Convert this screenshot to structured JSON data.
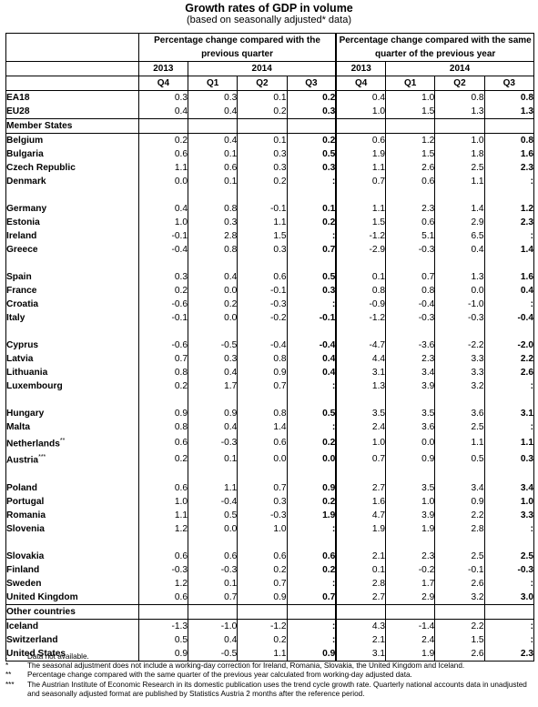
{
  "title": "Growth rates of GDP in volume",
  "subtitle": "(based on seasonally adjusted* data)",
  "header": {
    "group_prev_quarter": "Percentage change compared with the previous quarter",
    "group_prev_year": "Percentage change compared with the same quarter of the previous year",
    "year_2013": "2013",
    "year_2014": "2014",
    "quarters": [
      "Q4",
      "Q1",
      "Q2",
      "Q3",
      "Q4",
      "Q1",
      "Q2",
      "Q3"
    ]
  },
  "sections": [
    {
      "type": "rows",
      "rows": [
        {
          "label": "EA18",
          "v": [
            "0.3",
            "0.3",
            "0.1",
            "0.2",
            "0.4",
            "1.0",
            "0.8",
            "0.8"
          ]
        },
        {
          "label": "EU28",
          "v": [
            "0.4",
            "0.4",
            "0.2",
            "0.3",
            "1.0",
            "1.5",
            "1.3",
            "1.3"
          ]
        }
      ]
    },
    {
      "type": "head",
      "label": "Member States"
    },
    {
      "type": "rows",
      "rows": [
        {
          "label": "Belgium",
          "v": [
            "0.2",
            "0.4",
            "0.1",
            "0.2",
            "0.6",
            "1.2",
            "1.0",
            "0.8"
          ]
        },
        {
          "label": "Bulgaria",
          "v": [
            "0.6",
            "0.1",
            "0.3",
            "0.5",
            "1.9",
            "1.5",
            "1.8",
            "1.6"
          ]
        },
        {
          "label": "Czech Republic",
          "v": [
            "1.1",
            "0.6",
            "0.3",
            "0.3",
            "1.1",
            "2.6",
            "2.5",
            "2.3"
          ]
        },
        {
          "label": "Denmark",
          "v": [
            "0.0",
            "0.1",
            "0.2",
            ":",
            "0.7",
            "0.6",
            "1.1",
            ":"
          ]
        }
      ]
    },
    {
      "type": "rows",
      "rows": [
        {
          "label": "Germany",
          "v": [
            "0.4",
            "0.8",
            "-0.1",
            "0.1",
            "1.1",
            "2.3",
            "1.4",
            "1.2"
          ]
        },
        {
          "label": "Estonia",
          "v": [
            "1.0",
            "0.3",
            "1.1",
            "0.2",
            "1.5",
            "0.6",
            "2.9",
            "2.3"
          ]
        },
        {
          "label": "Ireland",
          "v": [
            "-0.1",
            "2.8",
            "1.5",
            ":",
            "-1.2",
            "5.1",
            "6.5",
            ":"
          ]
        },
        {
          "label": "Greece",
          "v": [
            "-0.4",
            "0.8",
            "0.3",
            "0.7",
            "-2.9",
            "-0.3",
            "0.4",
            "1.4"
          ]
        }
      ]
    },
    {
      "type": "rows",
      "rows": [
        {
          "label": "Spain",
          "v": [
            "0.3",
            "0.4",
            "0.6",
            "0.5",
            "0.1",
            "0.7",
            "1.3",
            "1.6"
          ]
        },
        {
          "label": "France",
          "v": [
            "0.2",
            "0.0",
            "-0.1",
            "0.3",
            "0.8",
            "0.8",
            "0.0",
            "0.4"
          ]
        },
        {
          "label": "Croatia",
          "v": [
            "-0.6",
            "0.2",
            "-0.3",
            ":",
            "-0.9",
            "-0.4",
            "-1.0",
            ":"
          ]
        },
        {
          "label": "Italy",
          "v": [
            "-0.1",
            "0.0",
            "-0.2",
            "-0.1",
            "-1.2",
            "-0.3",
            "-0.3",
            "-0.4"
          ]
        }
      ]
    },
    {
      "type": "rows",
      "rows": [
        {
          "label": "Cyprus",
          "v": [
            "-0.6",
            "-0.5",
            "-0.4",
            "-0.4",
            "-4.7",
            "-3.6",
            "-2.2",
            "-2.0"
          ]
        },
        {
          "label": "Latvia",
          "v": [
            "0.7",
            "0.3",
            "0.8",
            "0.4",
            "4.4",
            "2.3",
            "3.3",
            "2.2"
          ]
        },
        {
          "label": "Lithuania",
          "v": [
            "0.8",
            "0.4",
            "0.9",
            "0.4",
            "3.1",
            "3.4",
            "3.3",
            "2.6"
          ]
        },
        {
          "label": "Luxembourg",
          "v": [
            "0.2",
            "1.7",
            "0.7",
            ":",
            "1.3",
            "3.9",
            "3.2",
            ":"
          ]
        }
      ]
    },
    {
      "type": "rows",
      "rows": [
        {
          "label": "Hungary",
          "v": [
            "0.9",
            "0.9",
            "0.8",
            "0.5",
            "3.5",
            "3.5",
            "3.6",
            "3.1"
          ]
        },
        {
          "label": "Malta",
          "v": [
            "0.8",
            "0.4",
            "1.4",
            ":",
            "2.4",
            "3.6",
            "2.5",
            ":"
          ]
        },
        {
          "label": "Netherlands",
          "mark": "**",
          "v": [
            "0.6",
            "-0.3",
            "0.6",
            "0.2",
            "1.0",
            "0.0",
            "1.1",
            "1.1"
          ]
        },
        {
          "label": "Austria",
          "mark": "***",
          "v": [
            "0.2",
            "0.1",
            "0.0",
            "0.0",
            "0.7",
            "0.9",
            "0.5",
            "0.3"
          ]
        }
      ]
    },
    {
      "type": "rows",
      "rows": [
        {
          "label": "Poland",
          "v": [
            "0.6",
            "1.1",
            "0.7",
            "0.9",
            "2.7",
            "3.5",
            "3.4",
            "3.4"
          ]
        },
        {
          "label": "Portugal",
          "v": [
            "1.0",
            "-0.4",
            "0.3",
            "0.2",
            "1.6",
            "1.0",
            "0.9",
            "1.0"
          ]
        },
        {
          "label": "Romania",
          "v": [
            "1.1",
            "0.5",
            "-0.3",
            "1.9",
            "4.7",
            "3.9",
            "2.2",
            "3.3"
          ]
        },
        {
          "label": "Slovenia",
          "v": [
            "1.2",
            "0.0",
            "1.0",
            ":",
            "1.9",
            "1.9",
            "2.8",
            ":"
          ]
        }
      ]
    },
    {
      "type": "rows",
      "rows": [
        {
          "label": "Slovakia",
          "v": [
            "0.6",
            "0.6",
            "0.6",
            "0.6",
            "2.1",
            "2.3",
            "2.5",
            "2.5"
          ]
        },
        {
          "label": "Finland",
          "v": [
            "-0.3",
            "-0.3",
            "0.2",
            "0.2",
            "0.1",
            "-0.2",
            "-0.1",
            "-0.3"
          ]
        },
        {
          "label": "Sweden",
          "v": [
            "1.2",
            "0.1",
            "0.7",
            ":",
            "2.8",
            "1.7",
            "2.6",
            ":"
          ]
        },
        {
          "label": "United Kingdom",
          "v": [
            "0.6",
            "0.7",
            "0.9",
            "0.7",
            "2.7",
            "2.9",
            "3.2",
            "3.0"
          ]
        }
      ]
    },
    {
      "type": "head",
      "label": "Other countries"
    },
    {
      "type": "rows",
      "rows": [
        {
          "label": "Iceland",
          "v": [
            "-1.3",
            "-1.0",
            "-1.2",
            ":",
            "4.3",
            "-1.4",
            "2.2",
            ":"
          ]
        },
        {
          "label": "Switzerland",
          "v": [
            "0.5",
            "0.4",
            "0.2",
            ":",
            "2.1",
            "2.4",
            "1.5",
            ":"
          ]
        },
        {
          "label": "United States",
          "v": [
            "0.9",
            "-0.5",
            "1.1",
            "0.9",
            "3.1",
            "1.9",
            "2.6",
            "2.3"
          ]
        }
      ]
    }
  ],
  "notes": [
    {
      "sym": ":",
      "text": "Data not available."
    },
    {
      "sym": "*",
      "text": "The seasonal adjustment does not include a working-day correction for Ireland, Romania, Slovakia, the United Kingdom and Iceland."
    },
    {
      "sym": "**",
      "text": "Percentage change compared with the same quarter of the previous year calculated from working-day adjusted data."
    },
    {
      "sym": "***",
      "text": "The Austrian Institute of Economic Research in its domestic publication uses the trend cycle growth rate. Quarterly national accounts data in unadjusted and seasonally adjusted format are published by Statistics Austria 2 months after the reference period."
    }
  ]
}
